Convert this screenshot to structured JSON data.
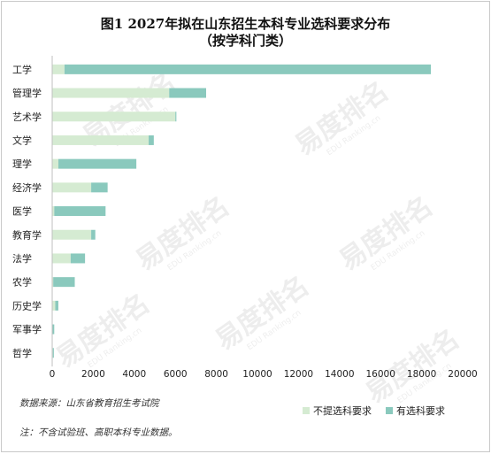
{
  "chart_data": {
    "type": "bar",
    "orientation": "horizontal",
    "stacked": true,
    "title_line1": "图1 2027年拟在山东招生本科专业选科要求分布",
    "title_line2": "（按学科门类）",
    "categories": [
      "工学",
      "管理学",
      "艺术学",
      "文学",
      "理学",
      "经济学",
      "医学",
      "教育学",
      "法学",
      "农学",
      "历史学",
      "军事学",
      "哲学"
    ],
    "series": [
      {
        "name": "不提选科要求",
        "color": "#d5ebd2",
        "values": [
          600,
          5700,
          6000,
          4700,
          300,
          1900,
          100,
          1900,
          900,
          50,
          150,
          20,
          30
        ]
      },
      {
        "name": "有选科要求",
        "color": "#8ac9bd",
        "values": [
          17850,
          1800,
          50,
          250,
          3800,
          800,
          2500,
          200,
          700,
          1050,
          150,
          80,
          50
        ]
      }
    ],
    "xlim": [
      0,
      20000
    ],
    "xticks": [
      0,
      2000,
      4000,
      6000,
      8000,
      10000,
      12000,
      14000,
      16000,
      18000,
      20000
    ],
    "legend_position": "bottom-right",
    "grid": false
  },
  "source_note": "数据来源：山东省教育招生考试院",
  "footnote": "注：不含试验班、高职本科专业数据。",
  "watermark_text": "易度排名",
  "watermark_subtext": "EDU Ranking.cn"
}
